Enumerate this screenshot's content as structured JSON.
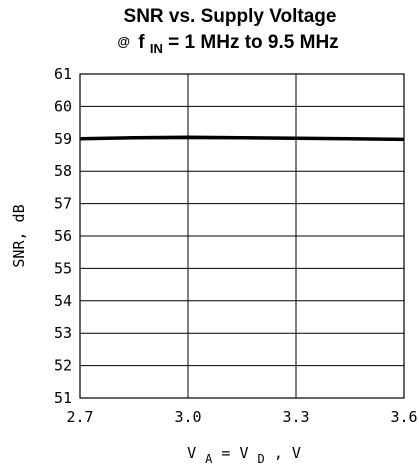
{
  "chart_data": {
    "type": "line",
    "title": "SNR vs. Supply Voltage",
    "subtitle": {
      "at": "@",
      "f": "f",
      "sub": "IN",
      "rest": " = 1 MHz to 9.5 MHz"
    },
    "xlabel": {
      "v1": "V",
      "sub1": "A",
      "mid": " = V",
      "sub2": "D",
      "tail": ", V"
    },
    "ylabel": "SNR, dB",
    "xlim": [
      2.7,
      3.6
    ],
    "ylim": [
      51,
      61
    ],
    "x_ticks": [
      "2.7",
      "3.0",
      "3.3",
      "3.6"
    ],
    "y_ticks": [
      "51",
      "52",
      "53",
      "54",
      "55",
      "56",
      "57",
      "58",
      "59",
      "60",
      "61"
    ],
    "grid": true,
    "series": [
      {
        "x": [
          2.7,
          2.85,
          3.0,
          3.15,
          3.3,
          3.45,
          3.6
        ],
        "y": [
          59.0,
          59.03,
          59.05,
          59.03,
          59.02,
          59.0,
          58.98
        ]
      }
    ]
  }
}
